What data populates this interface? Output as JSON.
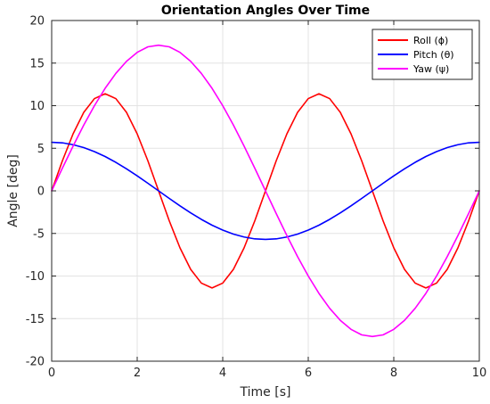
{
  "chart_data": {
    "type": "line",
    "title": "Orientation Angles Over Time",
    "xlabel": "Time [s]",
    "ylabel": "Angle [deg]",
    "xlim": [
      0,
      10
    ],
    "ylim": [
      -20,
      20
    ],
    "xticks": [
      0,
      2,
      4,
      6,
      8,
      10
    ],
    "yticks": [
      -20,
      -15,
      -10,
      -5,
      0,
      5,
      10,
      15,
      20
    ],
    "xtick_labels": [
      "0",
      "2",
      "4",
      "6",
      "8",
      "10"
    ],
    "ytick_labels": [
      "-20",
      "-15",
      "-10",
      "-5",
      "0",
      "5",
      "10",
      "15",
      "20"
    ],
    "grid": true,
    "legend_position": "top-right",
    "series": [
      {
        "name": "Roll (ϕ)",
        "color": "#ff0000",
        "x": [
          0,
          0.25,
          0.5,
          0.75,
          1.0,
          1.25,
          1.5,
          1.75,
          2.0,
          2.25,
          2.5,
          2.75,
          3.0,
          3.25,
          3.5,
          3.75,
          4.0,
          4.25,
          4.5,
          4.75,
          5.0,
          5.25,
          5.5,
          5.75,
          6.0,
          6.25,
          6.5,
          6.75,
          7.0,
          7.25,
          7.5,
          7.75,
          8.0,
          8.25,
          8.5,
          8.75,
          9.0,
          9.25,
          9.5,
          9.75,
          10.0
        ],
        "y": [
          0,
          3.52,
          6.69,
          9.21,
          10.83,
          11.4,
          10.83,
          9.21,
          6.69,
          3.52,
          0,
          -3.52,
          -6.69,
          -9.21,
          -10.83,
          -11.4,
          -10.83,
          -9.21,
          -6.69,
          -3.52,
          0,
          3.52,
          6.69,
          9.21,
          10.83,
          11.4,
          10.83,
          9.21,
          6.69,
          3.52,
          0,
          -3.52,
          -6.69,
          -9.21,
          -10.83,
          -11.4,
          -10.83,
          -9.21,
          -6.69,
          -3.52,
          0
        ]
      },
      {
        "name": "Pitch (θ)",
        "color": "#0000ff",
        "x": [
          0,
          0.25,
          0.5,
          0.75,
          1.0,
          1.25,
          1.5,
          1.75,
          2.0,
          2.25,
          2.5,
          2.75,
          3.0,
          3.25,
          3.5,
          3.75,
          4.0,
          4.25,
          4.5,
          4.75,
          5.0,
          5.25,
          5.5,
          5.75,
          6.0,
          6.25,
          6.5,
          6.75,
          7.0,
          7.25,
          7.5,
          7.75,
          8.0,
          8.25,
          8.5,
          8.75,
          9.0,
          9.25,
          9.5,
          9.75,
          10.0
        ],
        "y": [
          5.7,
          5.64,
          5.42,
          5.08,
          4.61,
          4.03,
          3.35,
          2.59,
          1.76,
          0.89,
          0,
          -0.89,
          -1.76,
          -2.59,
          -3.35,
          -4.03,
          -4.61,
          -5.08,
          -5.42,
          -5.64,
          -5.7,
          -5.64,
          -5.42,
          -5.08,
          -4.61,
          -4.03,
          -3.35,
          -2.59,
          -1.76,
          -0.89,
          0,
          0.89,
          1.76,
          2.59,
          3.35,
          4.03,
          4.61,
          5.08,
          5.42,
          5.64,
          5.7
        ]
      },
      {
        "name": "Yaw (ψ)",
        "color": "#ff00ff",
        "x": [
          0,
          0.25,
          0.5,
          0.75,
          1.0,
          1.25,
          1.5,
          1.75,
          2.0,
          2.25,
          2.5,
          2.75,
          3.0,
          3.25,
          3.5,
          3.75,
          4.0,
          4.25,
          4.5,
          4.75,
          5.0,
          5.25,
          5.5,
          5.75,
          6.0,
          6.25,
          6.5,
          6.75,
          7.0,
          7.25,
          7.5,
          7.75,
          8.0,
          8.25,
          8.5,
          8.75,
          9.0,
          9.25,
          9.5,
          9.75,
          10.0
        ],
        "y": [
          0,
          2.66,
          5.25,
          7.72,
          10.0,
          12.04,
          13.79,
          15.21,
          16.26,
          16.91,
          17.1,
          16.91,
          16.26,
          15.21,
          13.79,
          12.04,
          10.0,
          7.72,
          5.25,
          2.66,
          0,
          -2.66,
          -5.25,
          -7.72,
          -10.0,
          -12.04,
          -13.79,
          -15.21,
          -16.26,
          -16.91,
          -17.1,
          -16.91,
          -16.26,
          -15.21,
          -13.79,
          -12.04,
          -10.0,
          -7.72,
          -5.25,
          -2.66,
          0
        ]
      }
    ]
  }
}
